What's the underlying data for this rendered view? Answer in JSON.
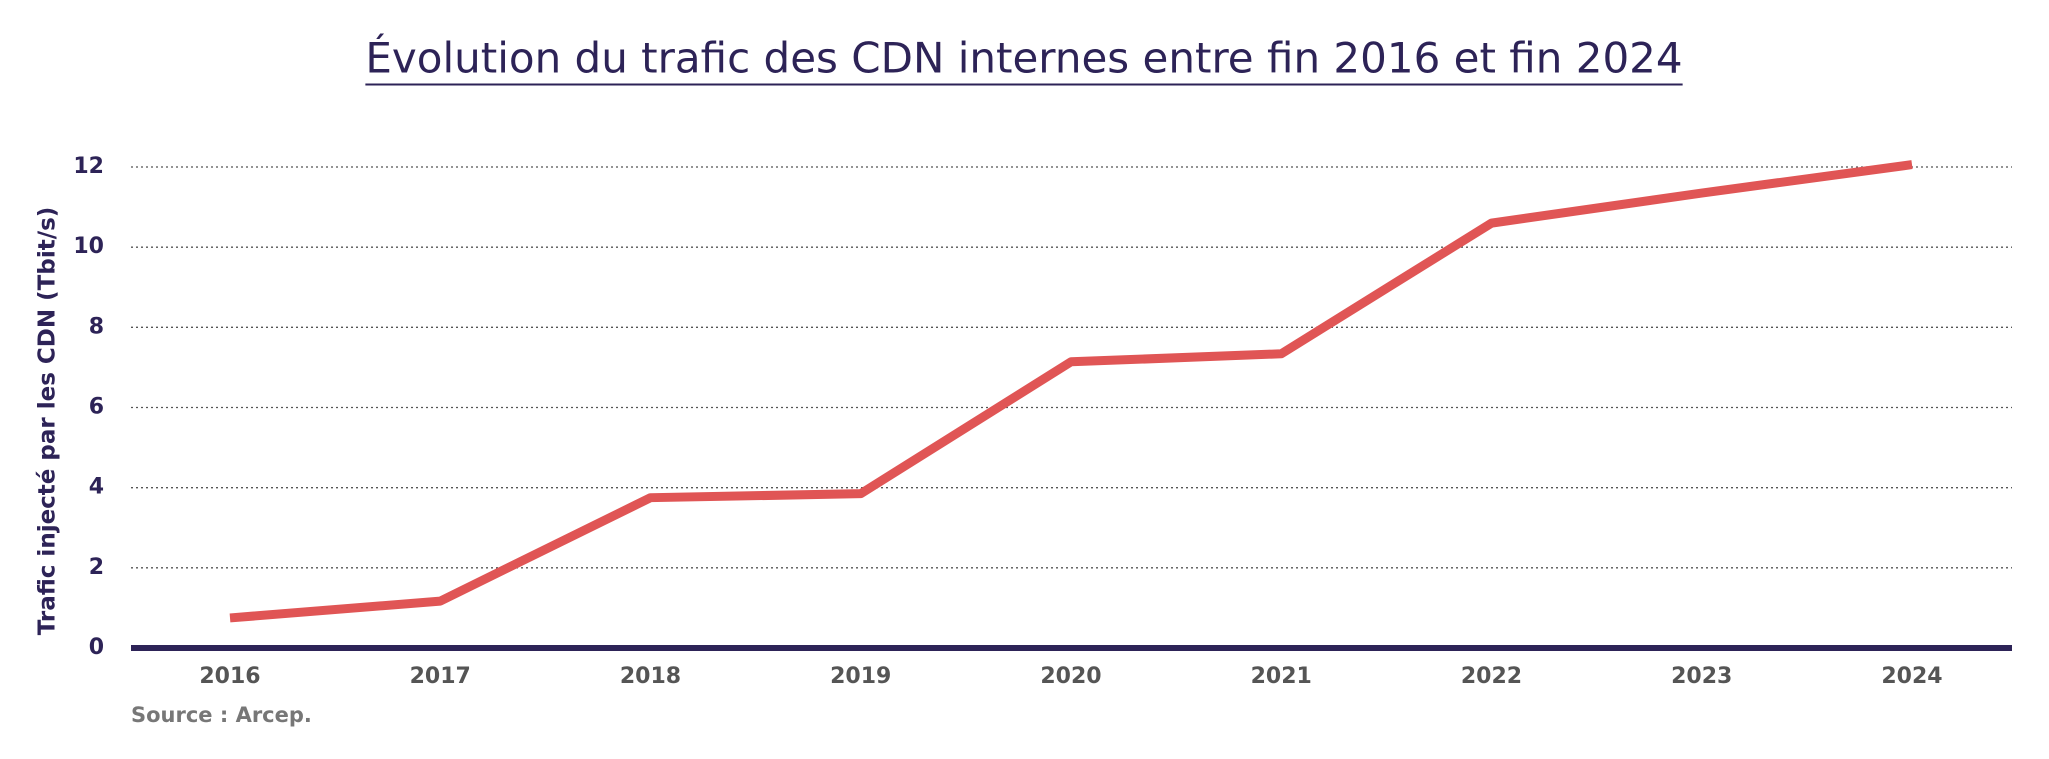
{
  "chart_data": {
    "type": "line",
    "title": "Évolution du trafic des CDN internes entre fin 2016 et fin 2024",
    "y_label": "Trafic injecté par les CDN (Tbit/s)",
    "source": "Source : Arcep.",
    "categories": [
      "2016",
      "2017",
      "2018",
      "2019",
      "2020",
      "2021",
      "2022",
      "2023",
      "2024"
    ],
    "series": [
      {
        "name": "Trafic",
        "color": "#e05555",
        "values": [
          0.75,
          1.17,
          3.75,
          3.85,
          7.14,
          7.34,
          10.6,
          11.35,
          12.06
        ]
      }
    ],
    "ylim": [
      0,
      12
    ],
    "yticks": [
      0,
      2,
      4,
      6,
      8,
      10,
      12
    ],
    "grid": true
  }
}
